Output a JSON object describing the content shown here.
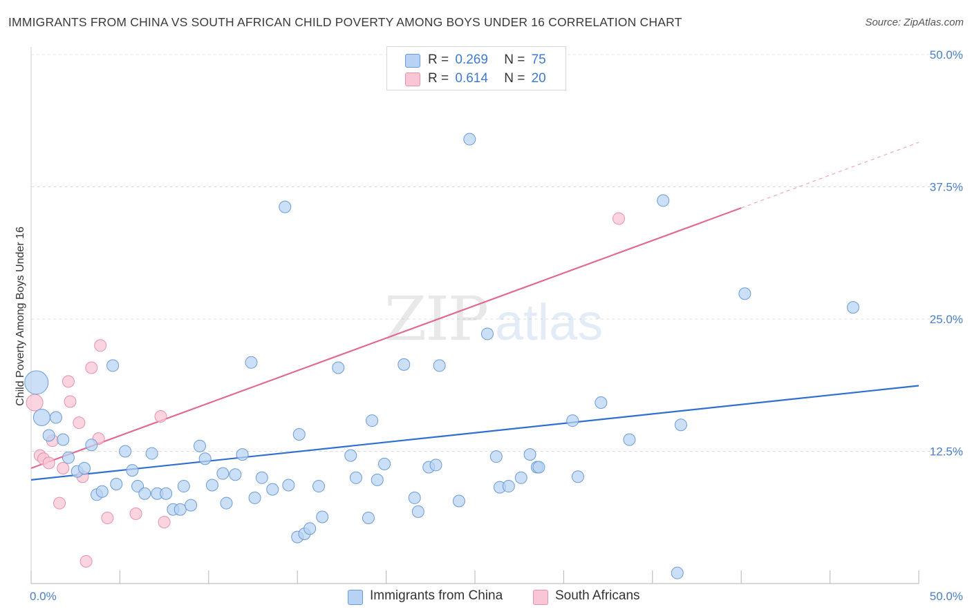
{
  "header": {
    "title": "IMMIGRANTS FROM CHINA VS SOUTH AFRICAN CHILD POVERTY AMONG BOYS UNDER 16 CORRELATION CHART",
    "source": "Source: ZipAtlas.com"
  },
  "watermark": {
    "zip": "ZIP",
    "atlas": "atlas"
  },
  "legend": {
    "rows": [
      {
        "r_label": "R =",
        "r_value": "0.269",
        "n_label": "N =",
        "n_value": "75"
      },
      {
        "r_label": "R =",
        "r_value": "0.614",
        "n_label": "N =",
        "n_value": "20"
      }
    ]
  },
  "bottom_legend": {
    "series1": "Immigrants from China",
    "series2": "South Africans"
  },
  "chart_data": {
    "type": "scatter",
    "ylabel": "Child Poverty Among Boys Under 16",
    "xlabel": "",
    "xlim": [
      0,
      50
    ],
    "ylim": [
      0,
      50
    ],
    "x_tick_labels": [
      "0.0%",
      "50.0%"
    ],
    "y_ticks": [
      12.5,
      25.0,
      37.5,
      50.0
    ],
    "y_tick_labels": [
      "12.5%",
      "25.0%",
      "37.5%",
      "50.0%"
    ],
    "grid": true,
    "colors": {
      "series1_fill": "#b7d2f2",
      "series1_stroke": "#6b9ad8",
      "series1_line": "#2f6fd0",
      "series2_fill": "#f8c6d4",
      "series2_stroke": "#e790ab",
      "series2_line": "#e06a92"
    },
    "series": [
      {
        "name": "Immigrants from China",
        "points": [
          [
            0.3,
            19.0,
            3
          ],
          [
            0.6,
            15.7,
            2
          ],
          [
            1.0,
            14.0,
            1
          ],
          [
            1.4,
            15.7,
            1
          ],
          [
            1.8,
            13.6,
            1
          ],
          [
            2.1,
            11.9,
            1
          ],
          [
            2.6,
            10.6,
            1
          ],
          [
            3.0,
            10.9,
            1
          ],
          [
            3.4,
            13.1,
            1
          ],
          [
            3.7,
            8.4,
            1
          ],
          [
            4.0,
            8.7,
            1
          ],
          [
            4.6,
            20.6,
            1
          ],
          [
            4.8,
            9.4,
            1
          ],
          [
            5.3,
            12.5,
            1
          ],
          [
            5.7,
            10.7,
            1
          ],
          [
            6.0,
            9.2,
            1
          ],
          [
            6.4,
            8.5,
            1
          ],
          [
            6.8,
            12.3,
            1
          ],
          [
            7.1,
            8.5,
            1
          ],
          [
            7.6,
            8.5,
            1
          ],
          [
            8.0,
            7.0,
            1
          ],
          [
            8.4,
            7.0,
            1
          ],
          [
            8.6,
            9.2,
            1
          ],
          [
            9.0,
            7.4,
            1
          ],
          [
            9.5,
            13.0,
            1
          ],
          [
            9.8,
            11.8,
            1
          ],
          [
            10.2,
            9.3,
            1
          ],
          [
            10.8,
            10.4,
            1
          ],
          [
            11.5,
            10.3,
            1
          ],
          [
            11.0,
            7.6,
            1
          ],
          [
            11.9,
            12.2,
            1
          ],
          [
            12.4,
            20.9,
            1
          ],
          [
            12.6,
            8.1,
            1
          ],
          [
            13.0,
            10.0,
            1
          ],
          [
            13.6,
            8.9,
            1
          ],
          [
            14.3,
            35.6,
            1
          ],
          [
            14.5,
            9.3,
            1
          ],
          [
            15.1,
            14.1,
            1
          ],
          [
            15.0,
            4.4,
            1
          ],
          [
            15.4,
            4.7,
            1
          ],
          [
            15.7,
            5.2,
            1
          ],
          [
            16.2,
            9.2,
            1
          ],
          [
            16.4,
            6.3,
            1
          ],
          [
            17.3,
            20.4,
            1
          ],
          [
            18.0,
            12.1,
            1
          ],
          [
            18.3,
            10.0,
            1
          ],
          [
            19.0,
            6.2,
            1
          ],
          [
            19.2,
            15.4,
            1
          ],
          [
            19.5,
            9.8,
            1
          ],
          [
            19.9,
            11.3,
            1
          ],
          [
            21.0,
            20.7,
            1
          ],
          [
            21.6,
            8.1,
            1
          ],
          [
            21.8,
            6.8,
            1
          ],
          [
            22.4,
            11.0,
            1
          ],
          [
            22.8,
            11.2,
            1
          ],
          [
            23.0,
            20.6,
            1
          ],
          [
            24.1,
            7.8,
            1
          ],
          [
            24.7,
            42.0,
            1
          ],
          [
            25.7,
            23.6,
            1
          ],
          [
            26.2,
            12.0,
            1
          ],
          [
            26.4,
            9.1,
            1
          ],
          [
            26.9,
            9.2,
            1
          ],
          [
            27.6,
            10.0,
            1
          ],
          [
            28.1,
            12.2,
            1
          ],
          [
            28.5,
            11.0,
            1
          ],
          [
            28.6,
            11.0,
            1
          ],
          [
            30.5,
            15.4,
            1
          ],
          [
            30.8,
            10.1,
            1
          ],
          [
            32.1,
            17.1,
            1
          ],
          [
            33.7,
            13.6,
            1
          ],
          [
            35.6,
            36.2,
            1
          ],
          [
            36.4,
            1.0,
            1
          ],
          [
            36.6,
            15.0,
            1
          ],
          [
            40.2,
            27.4,
            1
          ],
          [
            46.3,
            26.1,
            1
          ]
        ],
        "trendline": {
          "x": [
            0,
            50
          ],
          "y": [
            9.8,
            18.7
          ]
        }
      },
      {
        "name": "South Africans",
        "points": [
          [
            0.2,
            17.1,
            2
          ],
          [
            0.5,
            12.1,
            1
          ],
          [
            0.7,
            11.8,
            1
          ],
          [
            1.0,
            11.4,
            1
          ],
          [
            1.2,
            13.5,
            1
          ],
          [
            1.6,
            7.6,
            1
          ],
          [
            1.8,
            10.9,
            1
          ],
          [
            2.1,
            19.1,
            1
          ],
          [
            2.2,
            17.2,
            1
          ],
          [
            2.7,
            15.2,
            1
          ],
          [
            2.9,
            10.1,
            1
          ],
          [
            3.1,
            2.1,
            1
          ],
          [
            3.4,
            20.4,
            1
          ],
          [
            3.8,
            13.7,
            1
          ],
          [
            3.9,
            22.5,
            1
          ],
          [
            4.3,
            6.2,
            1
          ],
          [
            5.9,
            6.6,
            1
          ],
          [
            7.3,
            15.8,
            1
          ],
          [
            7.5,
            5.8,
            1
          ],
          [
            33.1,
            34.5,
            1
          ]
        ],
        "trendline": {
          "x": [
            0,
            40
          ],
          "y": [
            10.9,
            35.5
          ]
        },
        "trendline_extension": {
          "x": [
            40,
            50
          ],
          "y": [
            35.5,
            41.7
          ]
        }
      }
    ]
  }
}
